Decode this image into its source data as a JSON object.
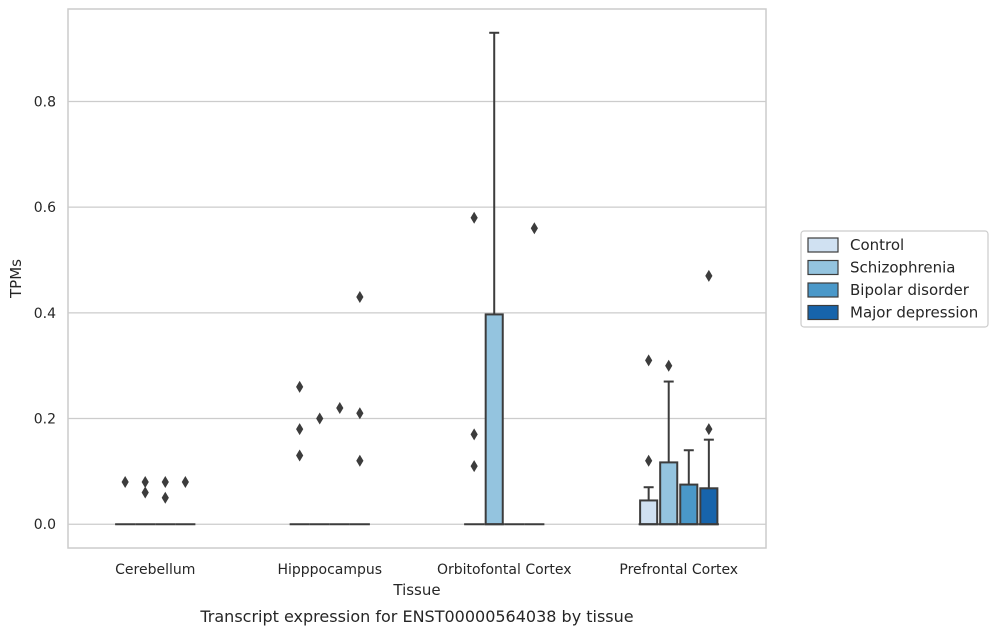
{
  "caption": "Transcript expression for ENST00000564038 by tissue",
  "chart_data": {
    "type": "box",
    "xlabel": "Tissue",
    "ylabel": "TPMs",
    "ylim": [
      -0.045,
      0.975
    ],
    "yticks": [
      0.0,
      0.2,
      0.4,
      0.6,
      0.8
    ],
    "ytick_labels": [
      "0.0",
      "0.2",
      "0.4",
      "0.6",
      "0.8"
    ],
    "grid": "horizontal",
    "legend_position": "right",
    "categories": [
      "Cerebellum",
      "Hipppocampus",
      "Orbitofontal Cortex",
      "Prefrontal Cortex"
    ],
    "series": [
      {
        "name": "Control",
        "color": "#d0e1f2",
        "boxes": [
          {
            "q1": 0,
            "median": 0,
            "q3": 0,
            "whisker_low": 0,
            "whisker_high": 0,
            "outliers": [
              0.08
            ]
          },
          {
            "q1": 0,
            "median": 0,
            "q3": 0,
            "whisker_low": 0,
            "whisker_high": 0,
            "outliers": [
              0.26,
              0.18,
              0.13
            ]
          },
          {
            "q1": 0,
            "median": 0,
            "q3": 0,
            "whisker_low": 0,
            "whisker_high": 0,
            "outliers": [
              0.58,
              0.17,
              0.11
            ]
          },
          {
            "q1": 0,
            "median": 0,
            "q3": 0.045,
            "whisker_low": 0,
            "whisker_high": 0.07,
            "outliers": [
              0.31,
              0.12
            ]
          }
        ]
      },
      {
        "name": "Schizophrenia",
        "color": "#94c4df",
        "boxes": [
          {
            "q1": 0,
            "median": 0,
            "q3": 0,
            "whisker_low": 0,
            "whisker_high": 0,
            "outliers": [
              0.08,
              0.06
            ]
          },
          {
            "q1": 0,
            "median": 0,
            "q3": 0,
            "whisker_low": 0,
            "whisker_high": 0,
            "outliers": [
              0.2
            ]
          },
          {
            "q1": 0,
            "median": 0,
            "q3": 0.397,
            "whisker_low": 0,
            "whisker_high": 0.93,
            "outliers": []
          },
          {
            "q1": 0,
            "median": 0,
            "q3": 0.117,
            "whisker_low": 0,
            "whisker_high": 0.27,
            "outliers": [
              0.3
            ]
          }
        ]
      },
      {
        "name": "Bipolar disorder",
        "color": "#4a98c9",
        "boxes": [
          {
            "q1": 0,
            "median": 0,
            "q3": 0,
            "whisker_low": 0,
            "whisker_high": 0,
            "outliers": [
              0.08,
              0.05
            ]
          },
          {
            "q1": 0,
            "median": 0,
            "q3": 0,
            "whisker_low": 0,
            "whisker_high": 0,
            "outliers": [
              0.22
            ]
          },
          {
            "q1": 0,
            "median": 0,
            "q3": 0,
            "whisker_low": 0,
            "whisker_high": 0,
            "outliers": []
          },
          {
            "q1": 0,
            "median": 0,
            "q3": 0.075,
            "whisker_low": 0,
            "whisker_high": 0.14,
            "outliers": []
          }
        ]
      },
      {
        "name": "Major depression",
        "color": "#1764ab",
        "boxes": [
          {
            "q1": 0,
            "median": 0,
            "q3": 0,
            "whisker_low": 0,
            "whisker_high": 0,
            "outliers": [
              0.08
            ]
          },
          {
            "q1": 0,
            "median": 0,
            "q3": 0,
            "whisker_low": 0,
            "whisker_high": 0,
            "outliers": [
              0.43,
              0.21,
              0.12
            ]
          },
          {
            "q1": 0,
            "median": 0,
            "q3": 0,
            "whisker_low": 0,
            "whisker_high": 0,
            "outliers": [
              0.56
            ]
          },
          {
            "q1": 0,
            "median": 0,
            "q3": 0.068,
            "whisker_low": 0,
            "whisker_high": 0.16,
            "outliers": [
              0.47,
              0.18
            ]
          }
        ]
      }
    ]
  }
}
